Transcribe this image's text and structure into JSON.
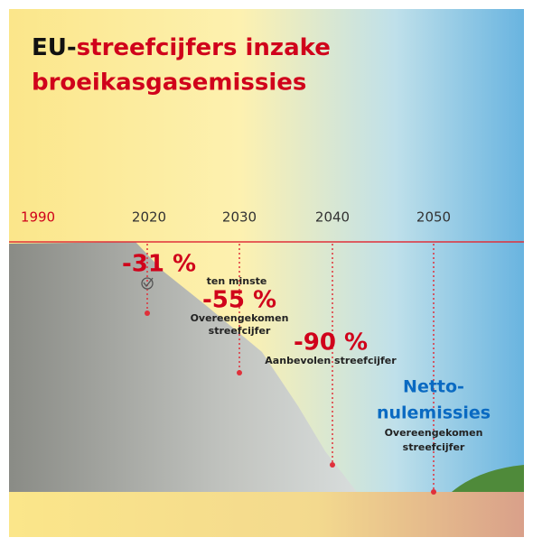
{
  "header": {
    "title_prefix": "EU-",
    "title_highlight": "streefcijfers inzake",
    "title_line2": "broeikasgasemissies"
  },
  "timeline": {
    "years": [
      "1990",
      "2020",
      "2030",
      "2040",
      "2050"
    ]
  },
  "targets": [
    {
      "value": "-31 %"
    },
    {
      "qualifier": "ten minste",
      "value": "-55 %",
      "note": [
        "Overeengekomen",
        "streefcijfer"
      ]
    },
    {
      "value": "-90 %",
      "note": [
        "Aanbevolen streefcijfer"
      ]
    },
    {
      "value": [
        "Netto-",
        "nulemissies"
      ],
      "note": [
        "Overeengekomen",
        "streefcijfer"
      ]
    }
  ]
}
